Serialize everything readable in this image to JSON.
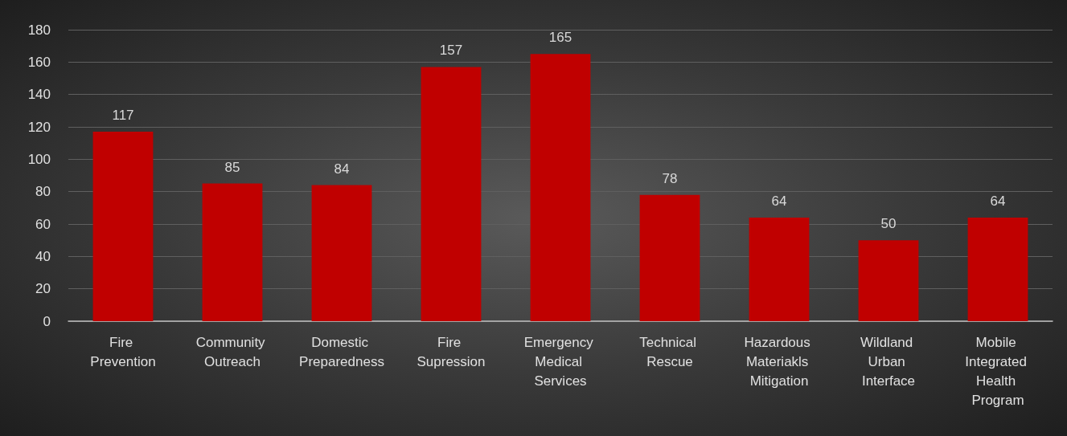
{
  "chart_data": {
    "type": "bar",
    "categories": [
      "Fire Prevention",
      "Community Outreach",
      "Domestic Preparedness",
      "Fire Supression",
      "Emergency Medical Services",
      "Technical Rescue",
      "Hazardous Materiakls Mitigation",
      "Wildland Urban Interface",
      "Mobile Integrated Health Program"
    ],
    "values": [
      117,
      85,
      84,
      157,
      165,
      78,
      64,
      50,
      64
    ],
    "color": "#c00000",
    "ylim": [
      0,
      180
    ],
    "yticks": [
      0,
      20,
      40,
      60,
      80,
      100,
      120,
      140,
      160,
      180
    ],
    "grid": "y",
    "data_labels": true
  }
}
